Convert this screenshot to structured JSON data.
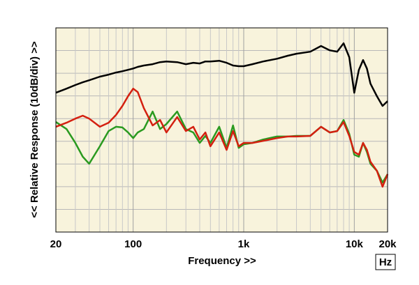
{
  "chart_data": {
    "type": "line",
    "xlabel": "Frequency >>",
    "ylabel": "<< Relative Response (10dB/div) >>",
    "unit_box": "Hz",
    "xscale": "log",
    "xlim": [
      20,
      20000
    ],
    "xticks": [
      20,
      100,
      {
        "value": 1000,
        "label": "1k"
      },
      {
        "value": 10000,
        "label": "10k"
      },
      {
        "value": 20000,
        "label": "20k"
      }
    ],
    "xminorticks": [
      30,
      40,
      50,
      60,
      70,
      80,
      90,
      200,
      300,
      400,
      500,
      600,
      700,
      800,
      900,
      2000,
      3000,
      4000,
      5000,
      6000,
      7000,
      8000,
      9000
    ],
    "ylim": [
      0,
      90
    ],
    "yticks": [
      0,
      10,
      20,
      30,
      40,
      50,
      60,
      70,
      80,
      90
    ],
    "grid": true,
    "x": [
      20,
      25,
      30,
      35,
      40,
      50,
      60,
      70,
      80,
      90,
      100,
      110,
      125,
      150,
      175,
      200,
      250,
      300,
      350,
      400,
      450,
      500,
      600,
      700,
      800,
      900,
      1000,
      1200,
      1500,
      2000,
      2500,
      3000,
      4000,
      5000,
      6000,
      7000,
      8000,
      9000,
      10000,
      11000,
      12000,
      13000,
      14000,
      16000,
      18000,
      20000
    ],
    "series": [
      {
        "color": "#2a9a20",
        "values": [
          48.5,
          45.4,
          39.3,
          33.2,
          30.1,
          37.8,
          44.5,
          46.4,
          46.1,
          43.9,
          41.4,
          43.9,
          45.4,
          53.1,
          45.4,
          47.6,
          53.1,
          45.4,
          43.9,
          39.3,
          42.4,
          39.3,
          46.4,
          37.1,
          47.0,
          37.1,
          38.7,
          39.3,
          40.8,
          42.1,
          42.1,
          42.4,
          42.4,
          46.4,
          43.9,
          44.5,
          49.4,
          43.3,
          34.1,
          33.2,
          39.3,
          35.3,
          30.1,
          27.0,
          21.8,
          25.5
        ]
      },
      {
        "color": "#d42010",
        "values": [
          46.4,
          48.2,
          50.0,
          51.3,
          50.0,
          46.4,
          48.2,
          51.6,
          55.6,
          59.9,
          63.2,
          61.7,
          54.6,
          47.0,
          49.4,
          43.9,
          50.7,
          44.5,
          46.4,
          40.8,
          43.9,
          37.8,
          43.9,
          36.2,
          44.5,
          37.8,
          39.3,
          39.3,
          40.2,
          41.4,
          42.1,
          42.1,
          42.4,
          46.4,
          43.9,
          44.5,
          48.5,
          42.4,
          35.3,
          34.1,
          39.3,
          36.2,
          31.0,
          27.0,
          20.0,
          25.5
        ]
      },
      {
        "color": "#000000",
        "values": [
          61.4,
          63.2,
          64.8,
          66.0,
          66.9,
          68.5,
          69.4,
          70.3,
          70.9,
          71.5,
          72.1,
          72.8,
          73.4,
          74.0,
          74.9,
          75.2,
          74.9,
          74.0,
          74.6,
          74.3,
          75.2,
          75.2,
          75.5,
          74.6,
          73.4,
          73.1,
          73.1,
          74.0,
          75.2,
          76.4,
          77.7,
          78.6,
          79.5,
          82.0,
          80.1,
          79.5,
          83.2,
          77.1,
          61.4,
          71.5,
          75.8,
          72.1,
          65.4,
          59.9,
          55.6,
          57.7
        ]
      }
    ]
  }
}
